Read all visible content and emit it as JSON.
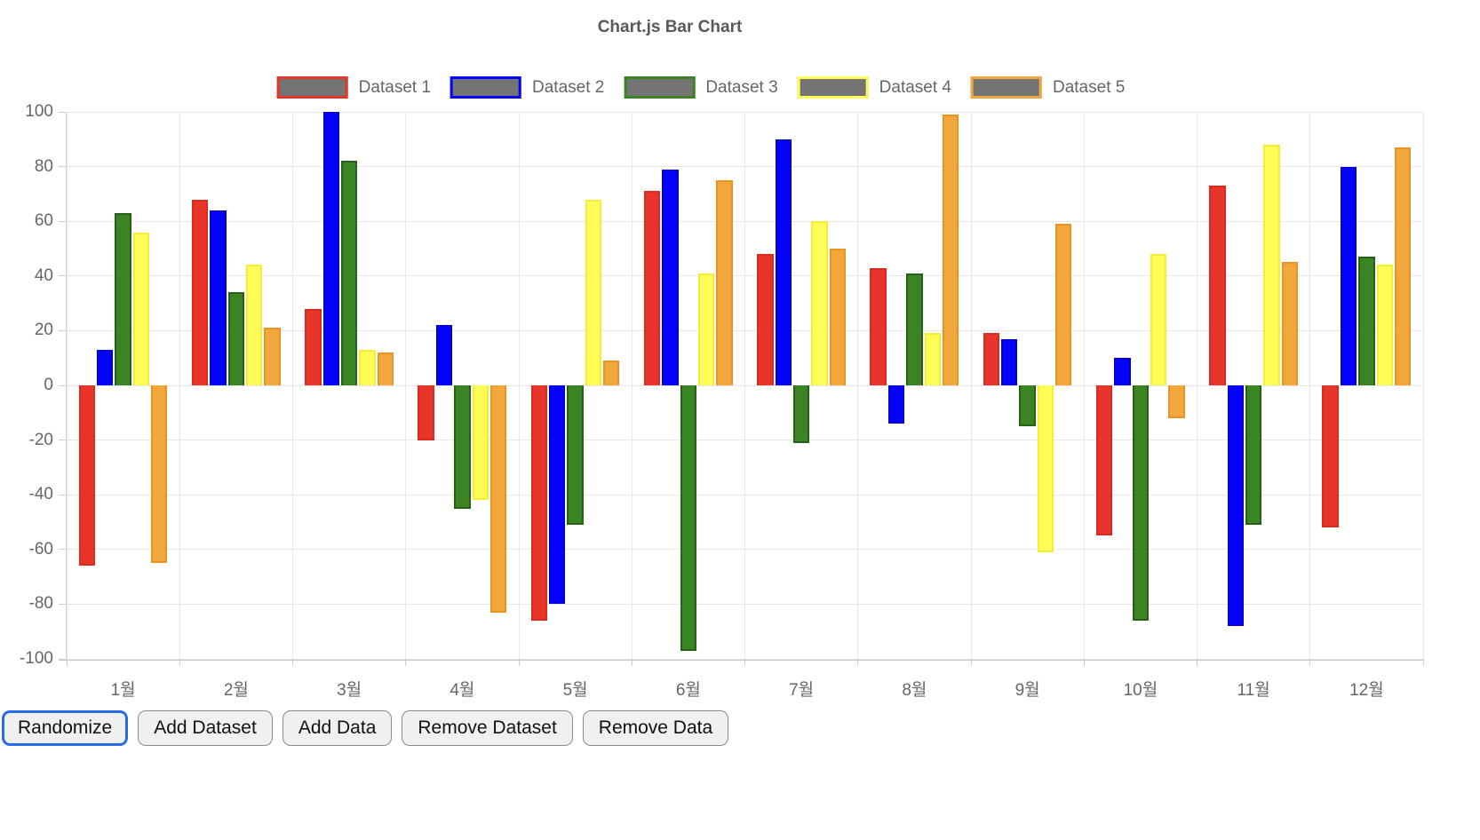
{
  "title": "Chart.js Bar Chart",
  "buttons": [
    {
      "label": "Randomize",
      "focused": true
    },
    {
      "label": "Add Dataset",
      "focused": false
    },
    {
      "label": "Add Data",
      "focused": false
    },
    {
      "label": "Remove Dataset",
      "focused": false
    },
    {
      "label": "Remove Data",
      "focused": false
    }
  ],
  "chart_data": {
    "type": "bar",
    "title": "Chart.js Bar Chart",
    "categories": [
      "1월",
      "2월",
      "3월",
      "4월",
      "5월",
      "6월",
      "7월",
      "8월",
      "9월",
      "10월",
      "11월",
      "12월"
    ],
    "series": [
      {
        "name": "Dataset 1",
        "color": "#e8352b",
        "borderColor": "#dc2a1f",
        "values": [
          -66,
          68,
          28,
          -20,
          -86,
          71,
          48,
          43,
          19,
          -55,
          73,
          -52
        ]
      },
      {
        "name": "Dataset 2",
        "color": "#0402fc",
        "borderColor": "#0100d6",
        "values": [
          13,
          64,
          100,
          22,
          -80,
          79,
          90,
          -14,
          17,
          10,
          -88,
          80
        ]
      },
      {
        "name": "Dataset 3",
        "color": "#3a8423",
        "borderColor": "#276017",
        "values": [
          63,
          34,
          82,
          -45,
          -51,
          -97,
          -21,
          41,
          -15,
          -86,
          -51,
          47
        ]
      },
      {
        "name": "Dataset 4",
        "color": "#fffd55",
        "borderColor": "#f6ec38",
        "values": [
          56,
          44,
          13,
          -42,
          68,
          41,
          60,
          19,
          -61,
          48,
          88,
          44
        ]
      },
      {
        "name": "Dataset 5",
        "color": "#f1a73c",
        "borderColor": "#e99420",
        "values": [
          -65,
          21,
          12,
          -83,
          9,
          75,
          50,
          99,
          59,
          -12,
          45,
          87
        ]
      }
    ],
    "ylim": [
      -100,
      100
    ],
    "ytick_step": 20,
    "legend_position": "top",
    "legend_box_fill": "#747474",
    "grid": true,
    "axis_text_color": "#666666",
    "grid_color": "#e8e8e8"
  }
}
